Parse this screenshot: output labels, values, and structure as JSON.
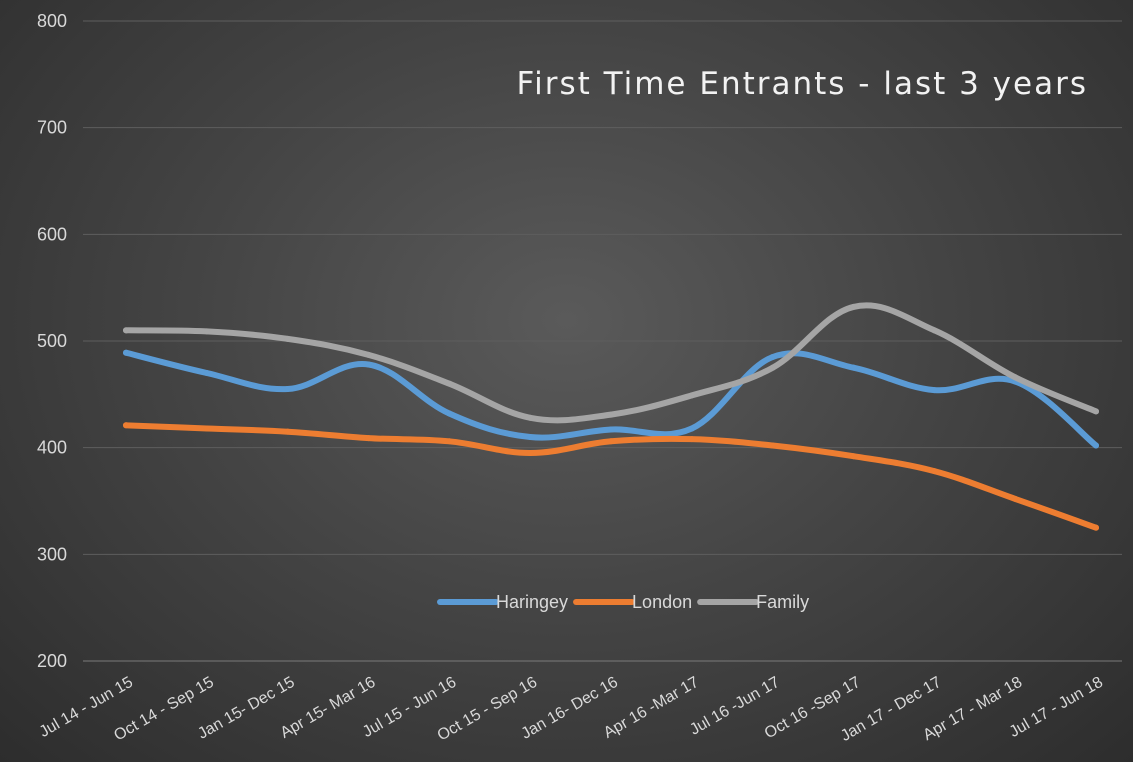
{
  "chart_data": {
    "type": "line",
    "title": "First Time Entrants - last 3 years",
    "xlabel": "",
    "ylabel": "",
    "ylim": [
      200,
      800
    ],
    "yticks": [
      200,
      300,
      400,
      500,
      600,
      700,
      800
    ],
    "grid": true,
    "legend_position": "inside-bottom-center",
    "categories": [
      "Jul 14 - Jun 15",
      "Oct 14 - Sep 15",
      "Jan 15- Dec 15",
      "Apr 15- Mar 16",
      "Jul 15 - Jun 16",
      "Oct 15 - Sep 16",
      "Jan 16- Dec 16",
      "Apr 16 -Mar 17",
      "Jul 16 -Jun 17",
      "Oct 16 -Sep 17",
      "Jan 17 - Dec 17",
      "Apr 17 - Mar 18",
      "Jul 17 - Jun 18"
    ],
    "series": [
      {
        "name": "Haringey",
        "color": "#5b9bd5",
        "values": [
          489,
          470,
          455,
          478,
          432,
          410,
          417,
          418,
          485,
          475,
          454,
          462,
          402
        ]
      },
      {
        "name": "London",
        "color": "#ed7d31",
        "values": [
          421,
          418,
          415,
          409,
          406,
          395,
          406,
          408,
          402,
          392,
          378,
          352,
          325
        ]
      },
      {
        "name": "Family",
        "color": "#a5a5a5",
        "values": [
          510,
          509,
          502,
          487,
          460,
          428,
          431,
          449,
          475,
          532,
          510,
          466,
          434
        ]
      }
    ]
  }
}
